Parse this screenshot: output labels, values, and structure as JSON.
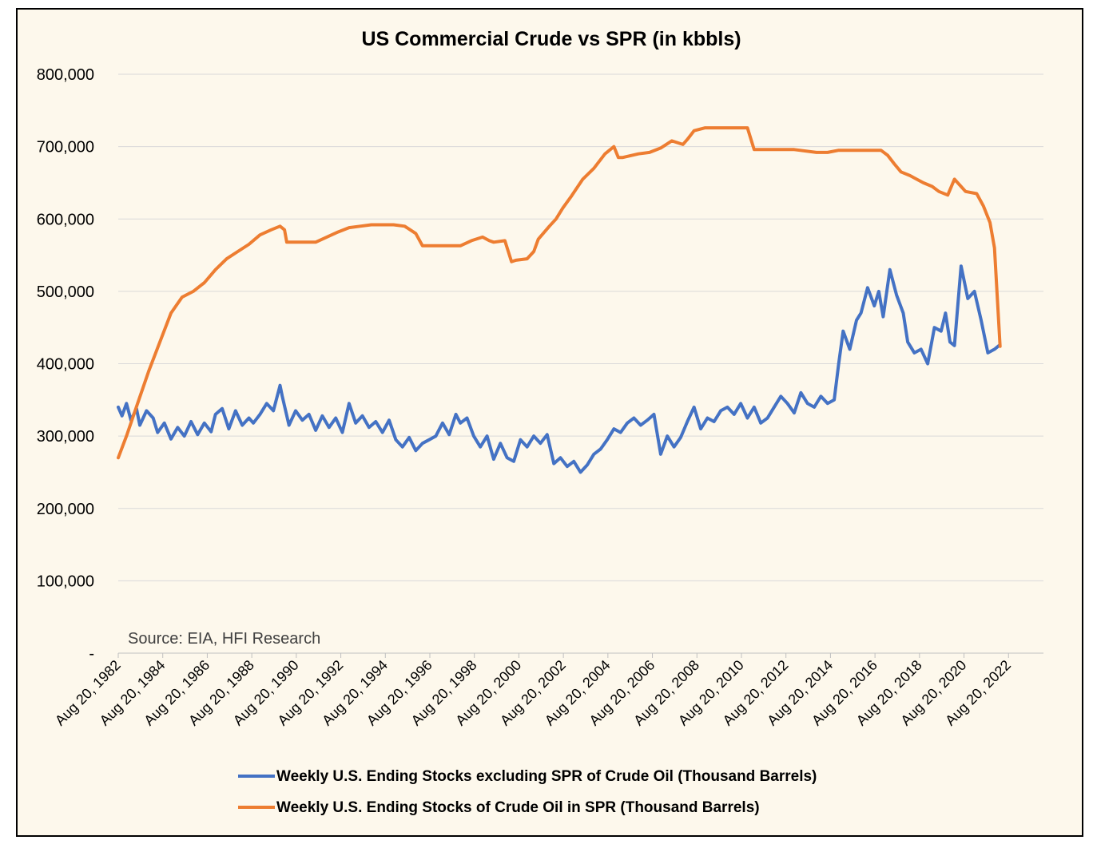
{
  "chart_data": {
    "type": "line",
    "title": "US Commercial Crude vs SPR (in kbbls)",
    "source": "Source: EIA, HFI Research",
    "ylim": [
      0,
      800000
    ],
    "y_ticks": [
      "-",
      "100,000",
      "200,000",
      "300,000",
      "400,000",
      "500,000",
      "600,000",
      "700,000",
      "800,000"
    ],
    "y_tick_values": [
      0,
      100000,
      200000,
      300000,
      400000,
      500000,
      600000,
      700000,
      800000
    ],
    "x_ticks": [
      "Aug 20, 1982",
      "Aug 20, 1984",
      "Aug 20, 1986",
      "Aug 20, 1988",
      "Aug 20, 1990",
      "Aug 20, 1992",
      "Aug 20, 1994",
      "Aug 20, 1996",
      "Aug 20, 1998",
      "Aug 20, 2000",
      "Aug 20, 2002",
      "Aug 20, 2004",
      "Aug 20, 2006",
      "Aug 20, 2008",
      "Aug 20, 2010",
      "Aug 20, 2012",
      "Aug 20, 2014",
      "Aug 20, 2016",
      "Aug 20, 2018",
      "Aug 20, 2020",
      "Aug 20, 2022"
    ],
    "xlim": [
      1982.63,
      2024.2
    ],
    "series": [
      {
        "name": "Weekly U.S. Ending Stocks excluding SPR of Crude Oil  (Thousand Barrels)",
        "color": "#4472c4",
        "x": [
          1982.63,
          1982.8,
          1983.0,
          1983.2,
          1983.45,
          1983.6,
          1983.9,
          1984.2,
          1984.4,
          1984.7,
          1985.0,
          1985.3,
          1985.6,
          1985.9,
          1986.2,
          1986.5,
          1986.8,
          1987.0,
          1987.3,
          1987.6,
          1987.9,
          1988.2,
          1988.5,
          1988.7,
          1989.0,
          1989.3,
          1989.6,
          1989.9,
          1990.0,
          1990.3,
          1990.6,
          1990.9,
          1991.2,
          1991.5,
          1991.8,
          1992.1,
          1992.4,
          1992.7,
          1993.0,
          1993.3,
          1993.6,
          1993.9,
          1994.2,
          1994.5,
          1994.8,
          1995.1,
          1995.4,
          1995.7,
          1996.0,
          1996.3,
          1996.6,
          1996.9,
          1997.2,
          1997.5,
          1997.8,
          1998.0,
          1998.3,
          1998.6,
          1998.9,
          1999.2,
          1999.5,
          1999.8,
          2000.1,
          2000.4,
          2000.7,
          2001.0,
          2001.3,
          2001.6,
          2001.9,
          2002.2,
          2002.5,
          2002.8,
          2003.1,
          2003.4,
          2003.7,
          2004.0,
          2004.3,
          2004.6,
          2004.9,
          2005.2,
          2005.5,
          2005.8,
          2006.1,
          2006.4,
          2006.7,
          2007.0,
          2007.3,
          2007.6,
          2007.9,
          2008.2,
          2008.5,
          2008.8,
          2009.1,
          2009.4,
          2009.7,
          2010.0,
          2010.3,
          2010.6,
          2010.9,
          2011.2,
          2011.5,
          2011.8,
          2012.1,
          2012.4,
          2012.7,
          2013.0,
          2013.3,
          2013.6,
          2013.9,
          2014.2,
          2014.5,
          2014.8,
          2015.0,
          2015.2,
          2015.5,
          2015.8,
          2016.0,
          2016.3,
          2016.6,
          2016.8,
          2017.0,
          2017.3,
          2017.6,
          2017.9,
          2018.1,
          2018.4,
          2018.7,
          2019.0,
          2019.3,
          2019.6,
          2019.8,
          2020.0,
          2020.2,
          2020.5,
          2020.8,
          2021.1,
          2021.4,
          2021.7,
          2022.0,
          2022.2
        ],
        "values": [
          340000,
          328000,
          345000,
          322000,
          338000,
          315000,
          335000,
          325000,
          305000,
          318000,
          296000,
          312000,
          300000,
          320000,
          302000,
          318000,
          306000,
          330000,
          338000,
          310000,
          335000,
          315000,
          325000,
          318000,
          330000,
          345000,
          335000,
          370000,
          355000,
          315000,
          335000,
          322000,
          330000,
          308000,
          328000,
          312000,
          325000,
          305000,
          345000,
          318000,
          328000,
          312000,
          320000,
          305000,
          322000,
          295000,
          285000,
          298000,
          280000,
          290000,
          295000,
          300000,
          318000,
          302000,
          330000,
          318000,
          325000,
          300000,
          285000,
          300000,
          268000,
          290000,
          270000,
          265000,
          295000,
          285000,
          300000,
          290000,
          302000,
          262000,
          270000,
          258000,
          265000,
          250000,
          260000,
          275000,
          282000,
          295000,
          310000,
          305000,
          318000,
          325000,
          315000,
          322000,
          330000,
          275000,
          300000,
          285000,
          298000,
          320000,
          340000,
          310000,
          325000,
          320000,
          335000,
          340000,
          330000,
          345000,
          325000,
          340000,
          318000,
          325000,
          340000,
          355000,
          345000,
          332000,
          360000,
          345000,
          340000,
          355000,
          345000,
          350000,
          400000,
          445000,
          420000,
          460000,
          470000,
          505000,
          480000,
          500000,
          465000,
          530000,
          495000,
          470000,
          430000,
          415000,
          420000,
          400000,
          450000,
          445000,
          470000,
          430000,
          425000,
          535000,
          490000,
          500000,
          460000,
          415000,
          420000,
          425000
        ]
      },
      {
        "name": "Weekly U.S. Ending Stocks of Crude Oil in SPR  (Thousand Barrels)",
        "color": "#ed7d31",
        "x": [
          1982.63,
          1983.0,
          1983.5,
          1984.0,
          1984.5,
          1985.0,
          1985.5,
          1986.0,
          1986.5,
          1987.0,
          1987.5,
          1988.0,
          1988.5,
          1989.0,
          1989.5,
          1989.9,
          1990.1,
          1990.2,
          1991.0,
          1991.5,
          1992.0,
          1992.5,
          1993.0,
          1993.5,
          1994.0,
          1994.5,
          1995.0,
          1995.5,
          1996.0,
          1996.3,
          1997.0,
          1997.5,
          1998.0,
          1998.5,
          1999.0,
          1999.3,
          1999.5,
          2000.0,
          2000.3,
          2000.5,
          2001.0,
          2001.3,
          2001.5,
          2002.0,
          2002.3,
          2002.6,
          2003.0,
          2003.5,
          2004.0,
          2004.5,
          2004.9,
          2005.1,
          2005.3,
          2006.0,
          2006.5,
          2007.0,
          2007.5,
          2008.0,
          2008.2,
          2008.5,
          2009.0,
          2009.5,
          2010.0,
          2010.5,
          2010.9,
          2011.2,
          2012.0,
          2013.0,
          2014.0,
          2014.5,
          2015.0,
          2016.0,
          2016.9,
          2017.2,
          2017.5,
          2017.8,
          2018.2,
          2018.8,
          2019.2,
          2019.5,
          2019.9,
          2020.2,
          2020.7,
          2021.2,
          2021.5,
          2021.8,
          2022.0,
          2022.25
        ],
        "values": [
          270000,
          300000,
          345000,
          390000,
          430000,
          470000,
          492000,
          500000,
          512000,
          530000,
          545000,
          555000,
          565000,
          578000,
          585000,
          590000,
          585000,
          568000,
          568000,
          568000,
          575000,
          582000,
          588000,
          590000,
          592000,
          592000,
          592000,
          590000,
          580000,
          563000,
          563000,
          563000,
          563000,
          570000,
          575000,
          570000,
          568000,
          570000,
          541000,
          543000,
          545000,
          555000,
          572000,
          590000,
          600000,
          615000,
          632000,
          655000,
          670000,
          690000,
          700000,
          685000,
          685000,
          690000,
          692000,
          698000,
          708000,
          703000,
          710000,
          722000,
          726000,
          726000,
          726000,
          726000,
          726000,
          696000,
          696000,
          696000,
          692000,
          692000,
          695000,
          695000,
          695000,
          688000,
          676000,
          665000,
          660000,
          650000,
          645000,
          638000,
          633000,
          655000,
          638000,
          635000,
          618000,
          595000,
          560000,
          424000
        ]
      }
    ]
  }
}
